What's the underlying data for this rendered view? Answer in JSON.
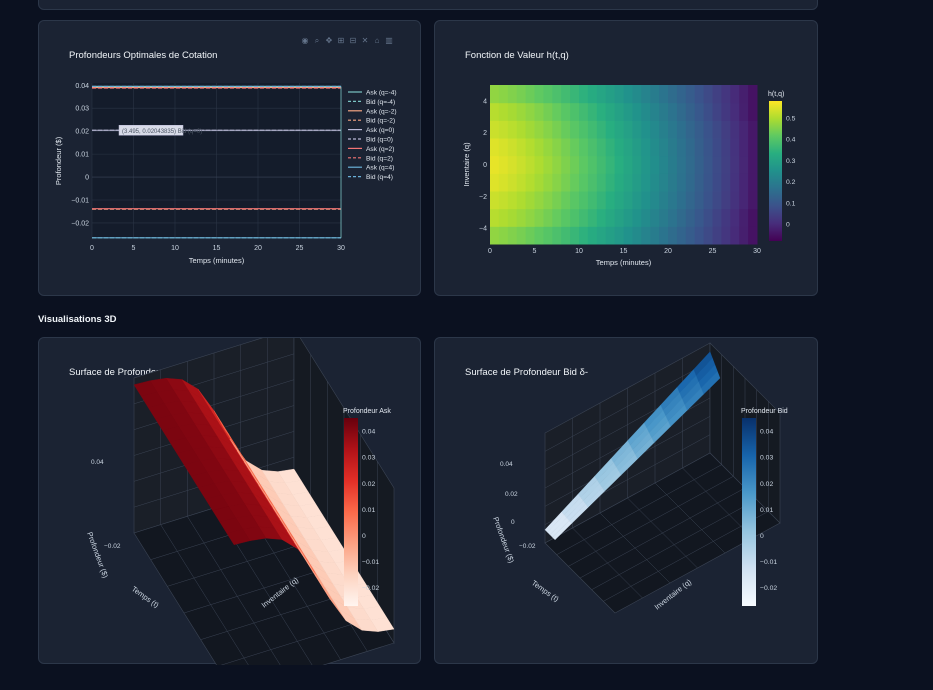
{
  "cards": {
    "depths": {
      "title": "Profondeurs Optimales de Cotation"
    },
    "value": {
      "title": "Fonction de Valeur h(t,q)"
    },
    "ask": {
      "title": "Surface de Profondeur Ask δ+"
    },
    "bid": {
      "title": "Surface de Profondeur Bid δ-"
    }
  },
  "section": {
    "label": "Visualisations 3D"
  },
  "modebar": {
    "icons": [
      "camera-icon",
      "zoom-icon",
      "pan-icon",
      "zoom-in-icon",
      "zoom-out-icon",
      "autoscale-icon",
      "home-icon",
      "plotly-logo-icon"
    ]
  },
  "chart_data": [
    {
      "type": "line",
      "title": "Profondeurs Optimales de Cotation",
      "xlabel": "Temps (minutes)",
      "ylabel": "Profondeur ($)",
      "xlim": [
        0,
        30
      ],
      "ylim": [
        -0.027,
        0.041
      ],
      "x_ticks": [
        0,
        5,
        10,
        15,
        20,
        25,
        30
      ],
      "y_ticks": [
        -0.02,
        -0.01,
        0,
        0.01,
        0.02,
        0.03,
        0.04
      ],
      "y_tick_labels": [
        "−0.02",
        "−0.01",
        "0",
        "0.01",
        "0.02",
        "0.03",
        "0.04"
      ],
      "legend_position": "right",
      "hover_label": "(3.495, 0.02043835) Bid (q=0)",
      "series": [
        {
          "name": "Ask (q=-4)",
          "color": "#7bc4c4",
          "dash": "solid",
          "y": 0.0395,
          "end": 0.0395
        },
        {
          "name": "Bid (q=-4)",
          "color": "#7bc4c4",
          "dash": "dash",
          "y": -0.0265,
          "end": -0.0265
        },
        {
          "name": "Ask (q=-2)",
          "color": "#f4a582",
          "dash": "solid",
          "y": 0.039,
          "end": 0.039
        },
        {
          "name": "Bid (q=-2)",
          "color": "#f4a582",
          "dash": "dash",
          "y": -0.014,
          "end": -0.014
        },
        {
          "name": "Ask (q=0)",
          "color": "#b9b9d6",
          "dash": "solid",
          "y": 0.0204,
          "end": 0.0204
        },
        {
          "name": "Bid (q=0)",
          "color": "#b9b9d6",
          "dash": "dash",
          "y": 0.0204,
          "end": 0.0204
        },
        {
          "name": "Ask (q=2)",
          "color": "#f47575",
          "dash": "solid",
          "y": -0.0138,
          "end": -0.0138
        },
        {
          "name": "Bid (q=2)",
          "color": "#f47575",
          "dash": "dash",
          "y": 0.0388,
          "end": 0.0388
        },
        {
          "name": "Ask (q=4)",
          "color": "#6ab0d8",
          "dash": "solid",
          "y": -0.0265,
          "end": -0.0265
        },
        {
          "name": "Bid (q=4)",
          "color": "#6ab0d8",
          "dash": "dash",
          "y": 0.0395,
          "end": 0.0395
        }
      ]
    },
    {
      "type": "heatmap",
      "title": "Fonction de Valeur h(t,q)",
      "xlabel": "Temps (minutes)",
      "ylabel": "Inventaire (q)",
      "xlim": [
        0,
        30
      ],
      "ylim": [
        -5,
        5
      ],
      "x_ticks": [
        0,
        5,
        10,
        15,
        20,
        25,
        30
      ],
      "y_ticks": [
        -4,
        -2,
        0,
        2,
        4
      ],
      "y_tick_labels": [
        "−4",
        "−2",
        "0",
        "2",
        "4"
      ],
      "colorbar_title": "h(t,q)",
      "colorbar_ticks": [
        0,
        0.1,
        0.2,
        0.3,
        0.4,
        0.5
      ],
      "colorscale": "viridis",
      "zmin": -0.08,
      "zmax": 0.58,
      "inventory": [
        -4,
        -3,
        -2,
        -1,
        0,
        1,
        2,
        3,
        4
      ],
      "value_at_t0": [
        0.47,
        0.51,
        0.53,
        0.55,
        0.56,
        0.55,
        0.53,
        0.51,
        0.47
      ],
      "value_at_t30": [
        -0.06,
        -0.06,
        -0.05,
        -0.05,
        -0.05,
        -0.05,
        -0.05,
        -0.06,
        -0.06
      ]
    },
    {
      "type": "surface",
      "title": "Surface de Profondeur Ask δ+",
      "colorbar_title": "Profondeur Ask",
      "colorbar_ticks": [
        -0.02,
        -0.01,
        0,
        0.01,
        0.02,
        0.03,
        0.04
      ],
      "colorbar_tick_labels": [
        "−0.02",
        "−0.01",
        "0",
        "0.01",
        "0.02",
        "0.03",
        "0.04"
      ],
      "zlim": [
        -0.027,
        0.045
      ],
      "z_ticks": [
        "0.04",
        "−0.02"
      ],
      "axis_labels": {
        "x": "Temps (t)",
        "y": "Inventaire (q)",
        "z": "Profondeur ($)"
      },
      "colorscale": "reds"
    },
    {
      "type": "surface",
      "title": "Surface de Profondeur Bid δ-",
      "colorbar_title": "Profondeur Bid",
      "colorbar_ticks": [
        -0.02,
        -0.01,
        0,
        0.01,
        0.02,
        0.03,
        0.04
      ],
      "colorbar_tick_labels": [
        "−0.02",
        "−0.01",
        "0",
        "0.01",
        "0.02",
        "0.03",
        "0.04"
      ],
      "zlim": [
        -0.027,
        0.045
      ],
      "z_ticks": [
        "0.04",
        "0.02",
        "0",
        "−0.02"
      ],
      "axis_labels": {
        "x": "Temps (t)",
        "y": "Inventaire (q)",
        "z": "Profondeur ($)"
      },
      "colorscale": "blues"
    }
  ]
}
